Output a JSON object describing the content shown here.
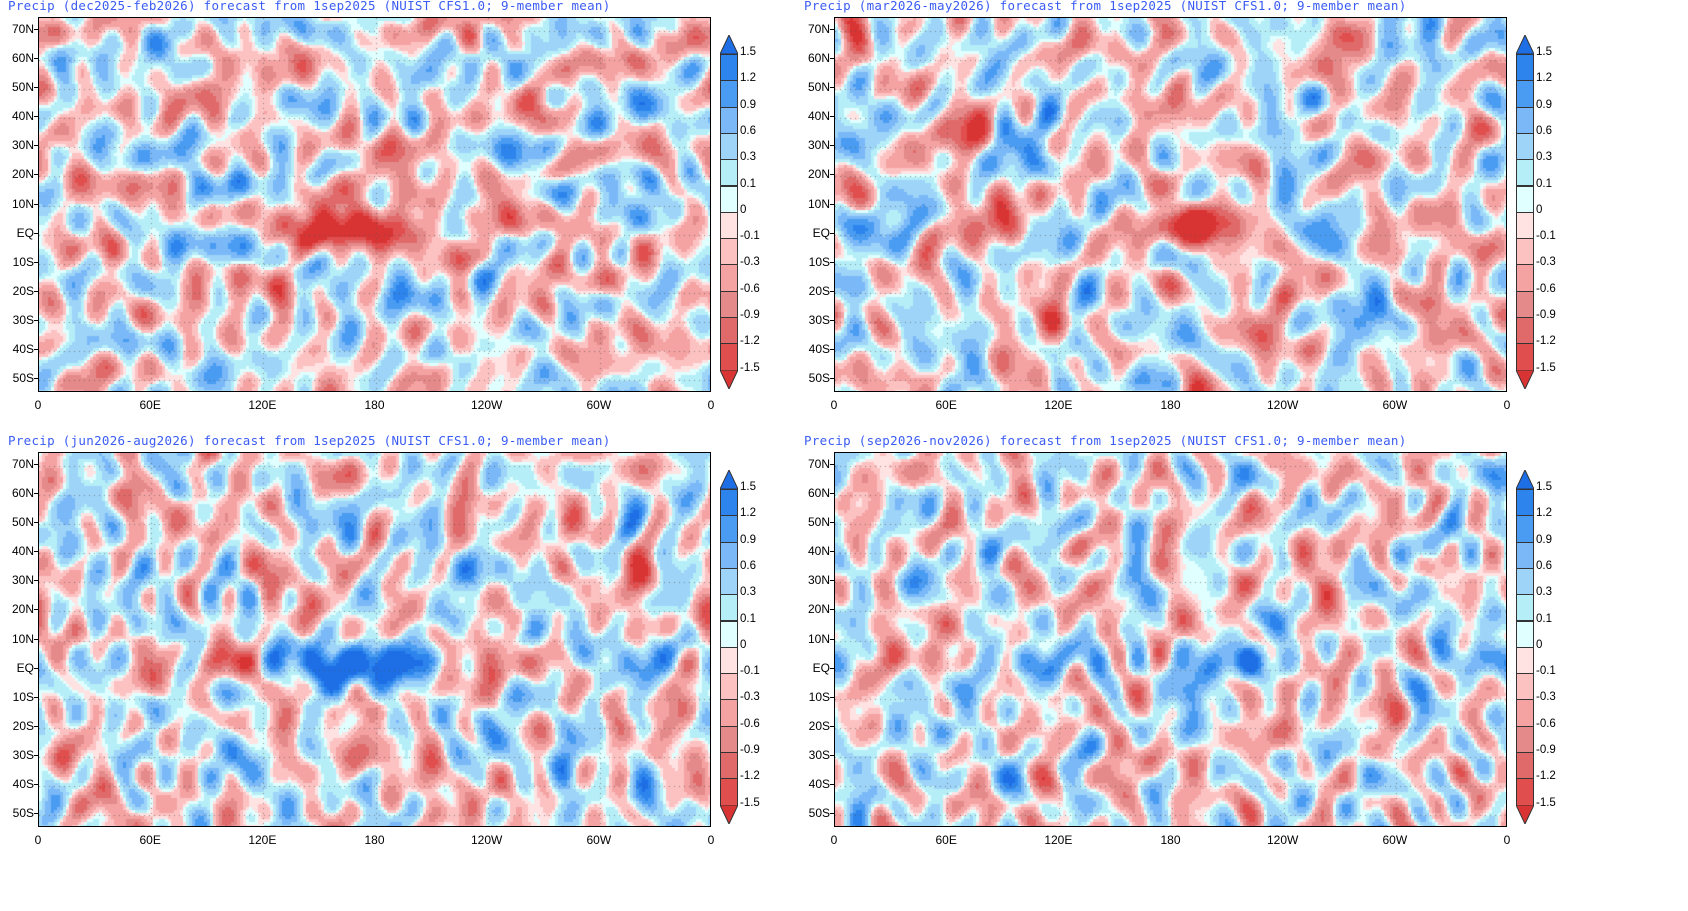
{
  "panels": [
    {
      "title": "Precip (dec2025-feb2026) forecast from 1sep2025 (NUIST CFS1.0; 9-member mean)",
      "season": "djf",
      "seed": 3
    },
    {
      "title": "Precip (mar2026-may2026) forecast from 1sep2025 (NUIST CFS1.0; 9-member mean)",
      "season": "mam",
      "seed": 11
    },
    {
      "title": "Precip (jun2026-aug2026) forecast from 1sep2025 (NUIST CFS1.0; 9-member mean)",
      "season": "jja",
      "seed": 23
    },
    {
      "title": "Precip (sep2026-nov2026) forecast from 1sep2025 (NUIST CFS1.0; 9-member mean)",
      "season": "son",
      "seed": 37
    }
  ],
  "lat_labels": [
    "70N",
    "60N",
    "50N",
    "40N",
    "30N",
    "20N",
    "10N",
    "EQ",
    "10S",
    "20S",
    "30S",
    "40S",
    "50S"
  ],
  "lon_labels": [
    "0",
    "60E",
    "120E",
    "180",
    "120W",
    "60W",
    "0"
  ],
  "colorbar": {
    "labels": [
      "1.5",
      "1.2",
      "0.9",
      "0.6",
      "0.3",
      "0.1",
      "0",
      "-0.1",
      "-0.3",
      "-0.6",
      "-0.9",
      "-1.2",
      "-1.5"
    ],
    "colors": [
      "#1e6ee6",
      "#2c84ec",
      "#4a9cf2",
      "#7ab8f7",
      "#9ed4f8",
      "#b6eef8",
      "#e0ffff",
      "#ffe2e2",
      "#fcc2c2",
      "#f4a2a2",
      "#e48a8a",
      "#e06a6a",
      "#e04e4e",
      "#d83434"
    ]
  },
  "grid": {
    "lat_range": [
      -54.5,
      74.5
    ],
    "lon_range": [
      0,
      360
    ]
  }
}
